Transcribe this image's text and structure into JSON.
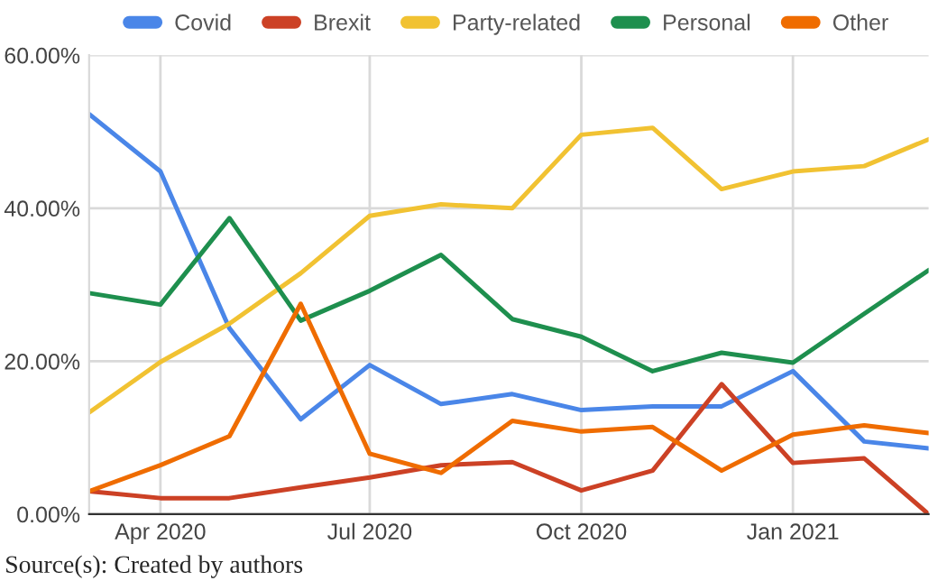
{
  "chart_data": {
    "type": "line",
    "x": [
      "2020-03",
      "2020-04",
      "2020-05",
      "2020-06",
      "2020-07",
      "2020-08",
      "2020-09",
      "2020-10",
      "2020-11",
      "2020-12",
      "2021-01",
      "2021-02",
      "2021-03"
    ],
    "series": [
      {
        "name": "Covid",
        "color": "#4a86e8",
        "values": [
          52.3,
          44.8,
          24.3,
          12.4,
          19.5,
          14.4,
          15.7,
          13.6,
          14.1,
          14.1,
          18.7,
          9.5,
          8.6
        ]
      },
      {
        "name": "Brexit",
        "color": "#cc4125",
        "values": [
          3.0,
          2.1,
          2.1,
          3.5,
          4.8,
          6.4,
          6.8,
          3.1,
          5.7,
          17.0,
          6.7,
          7.3,
          0
        ]
      },
      {
        "name": "Party-related",
        "color": "#f1c232",
        "values": [
          13.3,
          19.9,
          24.9,
          31.5,
          39.0,
          40.5,
          40.0,
          49.6,
          50.5,
          42.5,
          44.8,
          45.5,
          49.0
        ]
      },
      {
        "name": "Personal",
        "color": "#1e8f4e",
        "values": [
          28.9,
          27.4,
          38.7,
          25.3,
          29.2,
          33.9,
          25.5,
          23.2,
          18.7,
          21.1,
          19.8,
          26.2,
          31.9
        ]
      },
      {
        "name": "Other",
        "color": "#ef6c00",
        "values": [
          3.0,
          6.4,
          10.2,
          27.5,
          7.9,
          5.4,
          12.2,
          10.8,
          11.4,
          5.7,
          10.4,
          11.6,
          10.6
        ]
      }
    ],
    "xlim": [
      "2020-03",
      "2021-03"
    ],
    "xticks": [
      {
        "value": "2020-04",
        "label": "Apr 2020"
      },
      {
        "value": "2020-07",
        "label": "Jul 2020"
      },
      {
        "value": "2020-10",
        "label": "Oct 2020"
      },
      {
        "value": "2021-01",
        "label": "Jan 2021"
      }
    ],
    "ylim": [
      0,
      60
    ],
    "yticks": [
      {
        "value": 0,
        "label": "0.00%"
      },
      {
        "value": 20,
        "label": "20.00%"
      },
      {
        "value": 40,
        "label": "40.00%"
      },
      {
        "value": 60,
        "label": "60.00%"
      }
    ],
    "grid": true,
    "legend": "top",
    "marker": "none",
    "line_style": "solid",
    "annotations": [
      "Source(s): Created by authors"
    ]
  }
}
